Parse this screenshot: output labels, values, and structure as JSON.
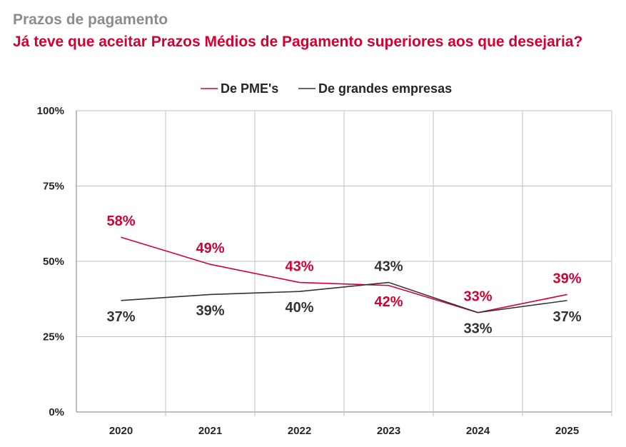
{
  "header": {
    "kicker": "Prazos de pagamento",
    "title": "Já teve que aceitar Prazos Médios de Pagamento superiores aos que desejaria?"
  },
  "colors": {
    "pme": "#d50032",
    "grandes": "#333333",
    "grid": "#bfbfbf",
    "axis": "#7f7f7f"
  },
  "chart_data": {
    "type": "line",
    "categories": [
      "2020",
      "2021",
      "2022",
      "2023",
      "2024",
      "2025"
    ],
    "ylim": [
      0,
      100
    ],
    "yticks": [
      0,
      25,
      50,
      75,
      100
    ],
    "ytick_labels": [
      "0%",
      "25%",
      "50%",
      "75%",
      "100%"
    ],
    "grid": true,
    "legend_position": "top-center",
    "series": [
      {
        "name": "De PME's",
        "color": "#d50032",
        "values": [
          58,
          49,
          43,
          42,
          33,
          39
        ],
        "labels": [
          "58%",
          "49%",
          "43%",
          "42%",
          "33%",
          "39%"
        ]
      },
      {
        "name": "De grandes empresas",
        "color": "#333333",
        "values": [
          37,
          39,
          40,
          43,
          33,
          37
        ],
        "labels": [
          "37%",
          "39%",
          "40%",
          "43%",
          "33%",
          "37%"
        ]
      }
    ]
  }
}
